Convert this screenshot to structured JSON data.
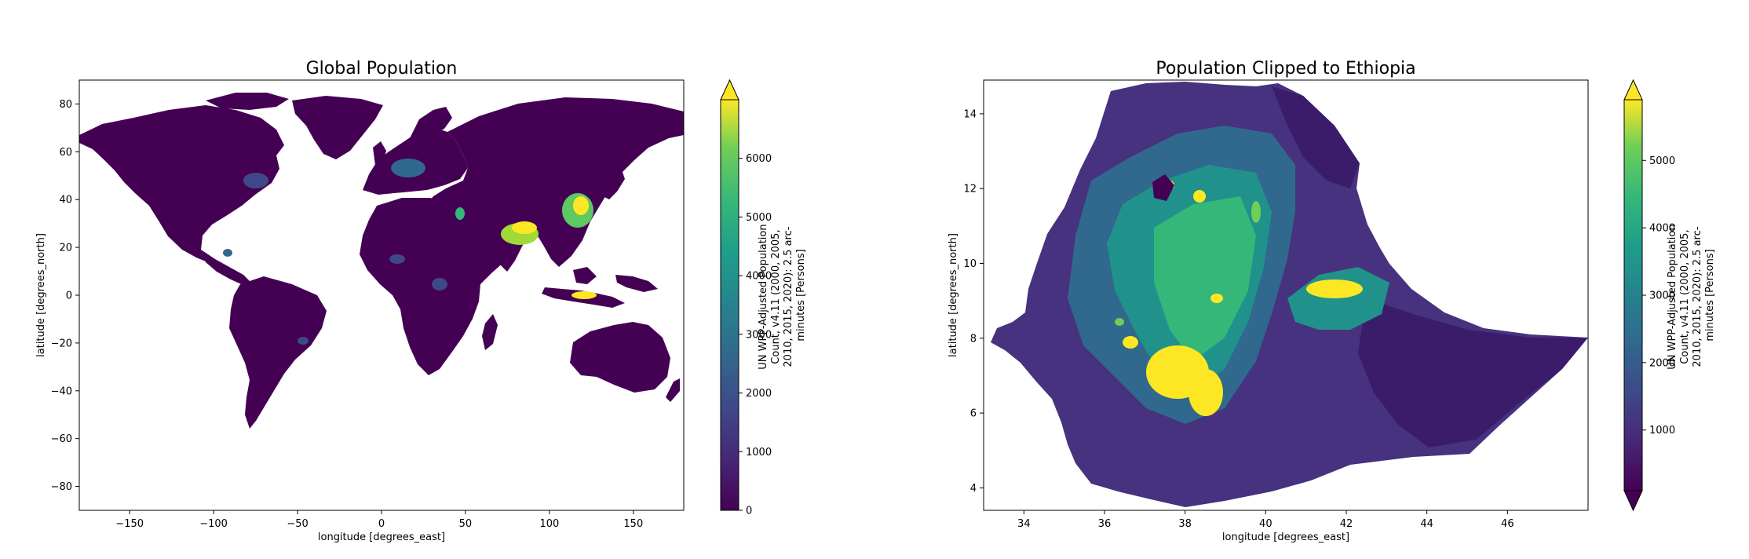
{
  "chart_data": [
    {
      "type": "heatmap",
      "title": "Global Population",
      "xlabel": "longitude [degrees_east]",
      "ylabel": "latitude [degrees_north]",
      "xlim": [
        -180,
        180
      ],
      "ylim": [
        -90,
        90
      ],
      "xticks": [
        -150,
        -100,
        -50,
        0,
        50,
        100,
        150
      ],
      "yticks": [
        -80,
        -60,
        -40,
        -20,
        0,
        20,
        40,
        60,
        80
      ],
      "colorbar": {
        "label": "UN WPP-Adjusted Population Count, v4.11 (2000, 2005, 2010, 2015, 2020): 2.5 arc-minutes [Persons]",
        "label_lines": [
          "UN WPP-Adjusted Population",
          "Count, v4.11 (2000, 2005,",
          "2010, 2015, 2020): 2.5 arc-",
          "minutes [Persons]"
        ],
        "colormap": "viridis",
        "range": [
          0,
          7000
        ],
        "ticks": [
          0,
          1000,
          2000,
          3000,
          4000,
          5000,
          6000
        ],
        "extend": "max"
      },
      "grid": false
    },
    {
      "type": "heatmap",
      "title": "Population Clipped to Ethiopia",
      "xlabel": "longitude [degrees_east]",
      "ylabel": "latitude [degrees_north]",
      "xlim": [
        33,
        48
      ],
      "ylim": [
        3.4,
        14.9
      ],
      "xticks": [
        34,
        36,
        38,
        40,
        42,
        44,
        46
      ],
      "yticks": [
        4,
        6,
        8,
        10,
        12,
        14
      ],
      "colorbar": {
        "label": "UN WPP-Adjusted Population Count, v4.11 (2000, 2005, 2010, 2015, 2020): 2.5 arc-minutes [Persons]",
        "label_lines": [
          "UN WPP-Adjusted Population",
          "Count, v4.11 (2000, 2005,",
          "2010, 2015, 2020): 2.5 arc-",
          "minutes [Persons]"
        ],
        "colormap": "viridis",
        "range": [
          100,
          5900
        ],
        "ticks": [
          1000,
          2000,
          3000,
          4000,
          5000
        ],
        "extend": "both"
      },
      "grid": false
    }
  ]
}
